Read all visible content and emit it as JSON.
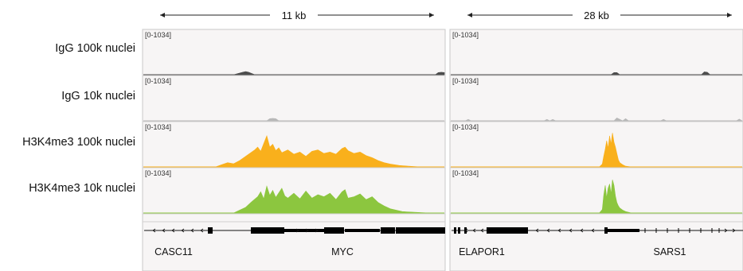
{
  "regions": [
    {
      "scale_label": "11 kb"
    },
    {
      "scale_label": "28 kb"
    }
  ],
  "tracks": [
    {
      "label": "IgG 100k nuclei",
      "range_label": "[0-1034]",
      "color": "#4d4d4d"
    },
    {
      "label": "IgG 10k nuclei",
      "range_label": "[0-1034]",
      "color": "#b8b8b8"
    },
    {
      "label": "H3K4me3 100k nuclei",
      "range_label": "[0-1034]",
      "color": "#f9b01c"
    },
    {
      "label": "H3K4me3 10k nuclei",
      "range_label": "[0-1034]",
      "color": "#8cc63f"
    }
  ],
  "genes": [
    {
      "name": "CASC11",
      "region": 0
    },
    {
      "name": "MYC",
      "region": 0
    },
    {
      "name": "ELAPOR1",
      "region": 1
    },
    {
      "name": "SARS1",
      "region": 1
    }
  ],
  "chart_data": {
    "type": "area",
    "y_range": [
      0,
      1034
    ],
    "x_domain": [
      0,
      1
    ],
    "regions": [
      {
        "scale_label": "11 kb",
        "series": [
          {
            "track": "IgG 100k nuclei",
            "points": [
              [
                0.0,
                0
              ],
              [
                0.3,
                0
              ],
              [
                0.33,
                70
              ],
              [
                0.34,
                90
              ],
              [
                0.35,
                70
              ],
              [
                0.37,
                0
              ],
              [
                0.97,
                0
              ],
              [
                0.98,
                60
              ],
              [
                0.99,
                70
              ],
              [
                1.0,
                60
              ]
            ]
          },
          {
            "track": "IgG 10k nuclei",
            "points": [
              [
                0.0,
                0
              ],
              [
                0.41,
                0
              ],
              [
                0.42,
                60
              ],
              [
                0.43,
                70
              ],
              [
                0.44,
                60
              ],
              [
                0.45,
                0
              ],
              [
                1.0,
                0
              ]
            ]
          },
          {
            "track": "H3K4me3 100k nuclei",
            "points": [
              [
                0.0,
                0
              ],
              [
                0.24,
                0
              ],
              [
                0.26,
                60
              ],
              [
                0.28,
                120
              ],
              [
                0.3,
                90
              ],
              [
                0.32,
                180
              ],
              [
                0.35,
                360
              ],
              [
                0.37,
                480
              ],
              [
                0.38,
                560
              ],
              [
                0.39,
                440
              ],
              [
                0.4,
                660
              ],
              [
                0.41,
                880
              ],
              [
                0.42,
                560
              ],
              [
                0.43,
                640
              ],
              [
                0.44,
                460
              ],
              [
                0.45,
                540
              ],
              [
                0.46,
                400
              ],
              [
                0.48,
                480
              ],
              [
                0.5,
                360
              ],
              [
                0.52,
                420
              ],
              [
                0.54,
                300
              ],
              [
                0.56,
                440
              ],
              [
                0.58,
                480
              ],
              [
                0.6,
                380
              ],
              [
                0.62,
                420
              ],
              [
                0.64,
                360
              ],
              [
                0.66,
                520
              ],
              [
                0.67,
                560
              ],
              [
                0.68,
                460
              ],
              [
                0.7,
                380
              ],
              [
                0.72,
                420
              ],
              [
                0.74,
                320
              ],
              [
                0.76,
                260
              ],
              [
                0.78,
                180
              ],
              [
                0.8,
                120
              ],
              [
                0.82,
                80
              ],
              [
                0.85,
                40
              ],
              [
                0.88,
                20
              ],
              [
                0.92,
                0
              ],
              [
                1.0,
                0
              ]
            ]
          },
          {
            "track": "H3K4me3 10k nuclei",
            "points": [
              [
                0.0,
                0
              ],
              [
                0.3,
                0
              ],
              [
                0.32,
                80
              ],
              [
                0.34,
                160
              ],
              [
                0.36,
                320
              ],
              [
                0.38,
                460
              ],
              [
                0.39,
                600
              ],
              [
                0.4,
                400
              ],
              [
                0.41,
                760
              ],
              [
                0.42,
                500
              ],
              [
                0.43,
                640
              ],
              [
                0.44,
                440
              ],
              [
                0.46,
                700
              ],
              [
                0.47,
                480
              ],
              [
                0.48,
                420
              ],
              [
                0.5,
                560
              ],
              [
                0.52,
                400
              ],
              [
                0.54,
                620
              ],
              [
                0.56,
                420
              ],
              [
                0.58,
                520
              ],
              [
                0.6,
                460
              ],
              [
                0.62,
                560
              ],
              [
                0.64,
                380
              ],
              [
                0.66,
                600
              ],
              [
                0.67,
                660
              ],
              [
                0.68,
                420
              ],
              [
                0.7,
                460
              ],
              [
                0.72,
                540
              ],
              [
                0.74,
                380
              ],
              [
                0.76,
                460
              ],
              [
                0.78,
                300
              ],
              [
                0.8,
                200
              ],
              [
                0.82,
                120
              ],
              [
                0.84,
                80
              ],
              [
                0.86,
                40
              ],
              [
                0.9,
                20
              ],
              [
                0.95,
                0
              ],
              [
                1.0,
                0
              ]
            ]
          }
        ]
      },
      {
        "scale_label": "28 kb",
        "series": [
          {
            "track": "IgG 100k nuclei",
            "points": [
              [
                0.0,
                0
              ],
              [
                0.55,
                0
              ],
              [
                0.56,
                60
              ],
              [
                0.57,
                60
              ],
              [
                0.58,
                0
              ],
              [
                0.86,
                0
              ],
              [
                0.87,
                80
              ],
              [
                0.88,
                70
              ],
              [
                0.89,
                0
              ],
              [
                1.0,
                0
              ]
            ]
          },
          {
            "track": "IgG 10k nuclei",
            "points": [
              [
                0.0,
                0
              ],
              [
                0.05,
                0
              ],
              [
                0.06,
                40
              ],
              [
                0.07,
                0
              ],
              [
                0.32,
                0
              ],
              [
                0.33,
                40
              ],
              [
                0.34,
                0
              ],
              [
                0.35,
                40
              ],
              [
                0.36,
                0
              ],
              [
                0.56,
                0
              ],
              [
                0.57,
                80
              ],
              [
                0.58,
                40
              ],
              [
                0.59,
                0
              ],
              [
                0.6,
                60
              ],
              [
                0.61,
                0
              ],
              [
                0.72,
                0
              ],
              [
                0.73,
                40
              ],
              [
                0.74,
                0
              ],
              [
                0.98,
                0
              ],
              [
                0.99,
                50
              ],
              [
                1.0,
                0
              ]
            ]
          },
          {
            "track": "H3K4me3 100k nuclei",
            "points": [
              [
                0.0,
                0
              ],
              [
                0.51,
                0
              ],
              [
                0.52,
                80
              ],
              [
                0.525,
                300
              ],
              [
                0.53,
                500
              ],
              [
                0.535,
                740
              ],
              [
                0.54,
                520
              ],
              [
                0.545,
                880
              ],
              [
                0.55,
                640
              ],
              [
                0.555,
                960
              ],
              [
                0.56,
                700
              ],
              [
                0.565,
                560
              ],
              [
                0.57,
                380
              ],
              [
                0.575,
                200
              ],
              [
                0.58,
                120
              ],
              [
                0.59,
                60
              ],
              [
                0.6,
                20
              ],
              [
                0.62,
                0
              ],
              [
                1.0,
                0
              ]
            ]
          },
          {
            "track": "H3K4me3 10k nuclei",
            "points": [
              [
                0.0,
                0
              ],
              [
                0.51,
                0
              ],
              [
                0.52,
                100
              ],
              [
                0.525,
                500
              ],
              [
                0.53,
                780
              ],
              [
                0.535,
                420
              ],
              [
                0.54,
                700
              ],
              [
                0.545,
                820
              ],
              [
                0.55,
                540
              ],
              [
                0.555,
                940
              ],
              [
                0.56,
                780
              ],
              [
                0.565,
                480
              ],
              [
                0.57,
                300
              ],
              [
                0.575,
                200
              ],
              [
                0.58,
                140
              ],
              [
                0.59,
                80
              ],
              [
                0.6,
                40
              ],
              [
                0.62,
                0
              ],
              [
                1.0,
                0
              ]
            ]
          }
        ]
      }
    ]
  }
}
